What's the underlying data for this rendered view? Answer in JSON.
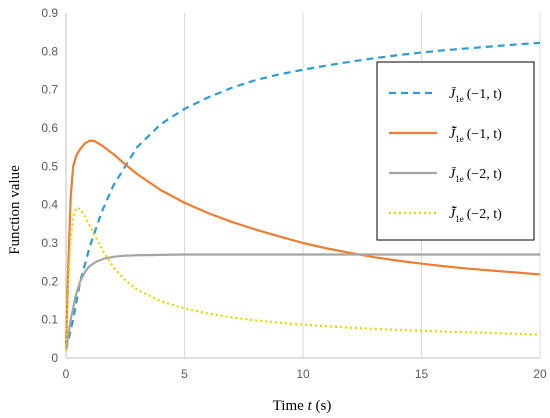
{
  "chart_data": {
    "type": "line",
    "xlabel_prefix": "Time ",
    "xlabel_var": "t",
    "xlabel_suffix": " (s)",
    "ylabel": "Function value",
    "xlim": [
      0,
      20
    ],
    "ylim": [
      0,
      0.9
    ],
    "xticks": [
      0,
      5,
      10,
      15,
      20
    ],
    "yticks": [
      0,
      0.1,
      0.2,
      0.3,
      0.4,
      0.5,
      0.6,
      0.7,
      0.8,
      0.9
    ],
    "grid": "vertical",
    "legend_position": "top-right",
    "series": [
      {
        "legend_main": "J̄",
        "legend_sub": "1e",
        "legend_args": "(−1, t)",
        "color": "#2E9BD6",
        "dash": "7,5",
        "x": [
          0,
          0.3,
          0.6,
          1,
          1.5,
          2,
          2.5,
          3,
          4,
          5,
          6,
          7,
          8,
          9,
          10,
          11,
          12,
          13,
          14,
          15,
          16,
          17,
          18,
          19,
          20
        ],
        "y": [
          0.02,
          0.1,
          0.2,
          0.29,
          0.38,
          0.45,
          0.5,
          0.55,
          0.61,
          0.65,
          0.68,
          0.705,
          0.725,
          0.74,
          0.752,
          0.763,
          0.773,
          0.782,
          0.79,
          0.797,
          0.803,
          0.808,
          0.813,
          0.818,
          0.822
        ]
      },
      {
        "legend_main": "J̄̃",
        "legend_sub": "1e",
        "legend_args": "(−1, t)",
        "color": "#ED7D31",
        "dash": "",
        "x": [
          0,
          0.1,
          0.2,
          0.3,
          0.45,
          0.6,
          0.8,
          1,
          1.2,
          1.5,
          2,
          2.5,
          3,
          4,
          5,
          6,
          7,
          8,
          9,
          10,
          11,
          12,
          13,
          14,
          15,
          16,
          17,
          18,
          19,
          20
        ],
        "y": [
          0.03,
          0.25,
          0.42,
          0.5,
          0.53,
          0.545,
          0.56,
          0.567,
          0.566,
          0.555,
          0.532,
          0.505,
          0.48,
          0.438,
          0.405,
          0.378,
          0.355,
          0.335,
          0.317,
          0.3,
          0.286,
          0.274,
          0.263,
          0.254,
          0.246,
          0.239,
          0.233,
          0.228,
          0.223,
          0.218
        ]
      },
      {
        "legend_main": "J̄",
        "legend_sub": "1e",
        "legend_args": "(−2, t)",
        "color": "#A5A5A5",
        "dash": "",
        "x": [
          0,
          0.2,
          0.4,
          0.6,
          0.8,
          1,
          1.3,
          1.6,
          2,
          2.5,
          3,
          4,
          5,
          6,
          8,
          10,
          12,
          14,
          16,
          18,
          20
        ],
        "y": [
          0.02,
          0.1,
          0.16,
          0.2,
          0.225,
          0.24,
          0.252,
          0.259,
          0.264,
          0.267,
          0.268,
          0.269,
          0.27,
          0.27,
          0.27,
          0.27,
          0.27,
          0.27,
          0.27,
          0.27,
          0.27
        ]
      },
      {
        "legend_main": "J̄̃",
        "legend_sub": "1e",
        "legend_args": "(−2, t)",
        "color": "#E3D400",
        "dash": "2,3",
        "x": [
          0,
          0.1,
          0.2,
          0.3,
          0.45,
          0.6,
          0.8,
          1,
          1.3,
          1.6,
          2,
          2.5,
          3,
          4,
          5,
          6,
          7,
          8,
          9,
          10,
          11,
          12,
          13,
          14,
          15,
          16,
          17,
          18,
          19,
          20
        ],
        "y": [
          0.02,
          0.2,
          0.31,
          0.37,
          0.392,
          0.388,
          0.37,
          0.345,
          0.31,
          0.275,
          0.237,
          0.203,
          0.178,
          0.148,
          0.129,
          0.116,
          0.106,
          0.098,
          0.092,
          0.087,
          0.083,
          0.079,
          0.076,
          0.073,
          0.071,
          0.069,
          0.067,
          0.065,
          0.063,
          0.061
        ]
      }
    ]
  }
}
